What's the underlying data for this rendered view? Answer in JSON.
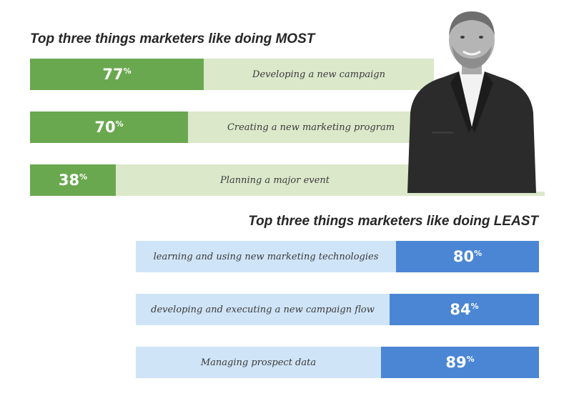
{
  "colors": {
    "most_fill": "#6aa84f",
    "most_track": "#dbe8ca",
    "least_fill": "#4a86d4",
    "least_track": "#cfe4f7"
  },
  "pct_sign": "%",
  "chart_data": [
    {
      "type": "bar",
      "title": "Top three things marketers like doing MOST",
      "categories": [
        "Developing a new campaign",
        "Creating a new marketing program",
        "Planning a major event"
      ],
      "values": [
        77,
        70,
        38
      ],
      "value_labels": [
        "77",
        "70",
        "38"
      ],
      "orientation": "horizontal",
      "xlim": [
        0,
        100
      ]
    },
    {
      "type": "bar",
      "title": "Top three things marketers like doing LEAST",
      "categories": [
        "learning and using new marketing technologies",
        "developing and executing a new campaign flow",
        "Managing prospect data"
      ],
      "values": [
        80,
        84,
        89
      ],
      "value_labels": [
        "80",
        "84",
        "89"
      ],
      "orientation": "horizontal",
      "xlim": [
        0,
        100
      ]
    }
  ],
  "portrait": {
    "icon": "person-photo-icon"
  }
}
